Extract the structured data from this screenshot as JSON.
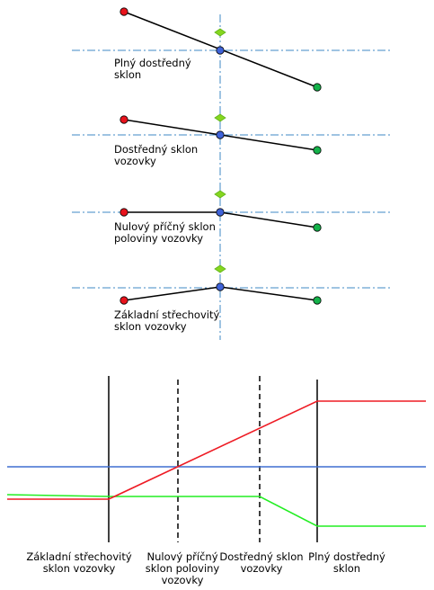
{
  "colors": {
    "left_point": "#e8131c",
    "right_point": "#14b24a",
    "pivot_point": "#3f63d9",
    "axis_line": "#3f88c5",
    "marker": "#86d61f",
    "red_line": "#ee1b24",
    "green_line": "#22ee22",
    "blue_line": "#3f6fd1"
  },
  "stages": [
    {
      "id": "plny",
      "line1": "Plný dostředný",
      "line2": "sklon"
    },
    {
      "id": "dostredny",
      "line1": "Dostředný sklon",
      "line2": "vozovky"
    },
    {
      "id": "nulovy",
      "line1": "Nulový příčný sklon",
      "line2": "poloviny vozovky"
    },
    {
      "id": "zakladni",
      "line1": "Základní střechovitý",
      "line2": "sklon vozovky"
    }
  ],
  "bottom_labels": [
    {
      "id": "zakladni",
      "line1": "Základní střechovitý",
      "line2": "sklon vozovky",
      "line3": ""
    },
    {
      "id": "nulovy",
      "line1": "Nulový příčný",
      "line2": "sklon poloviny",
      "line3": "vozovky"
    },
    {
      "id": "dostredny",
      "line1": "Dostředný sklon",
      "line2": "vozovky",
      "line3": ""
    },
    {
      "id": "plny",
      "line1": "Plný dostředný",
      "line2": "sklon",
      "line3": ""
    }
  ]
}
